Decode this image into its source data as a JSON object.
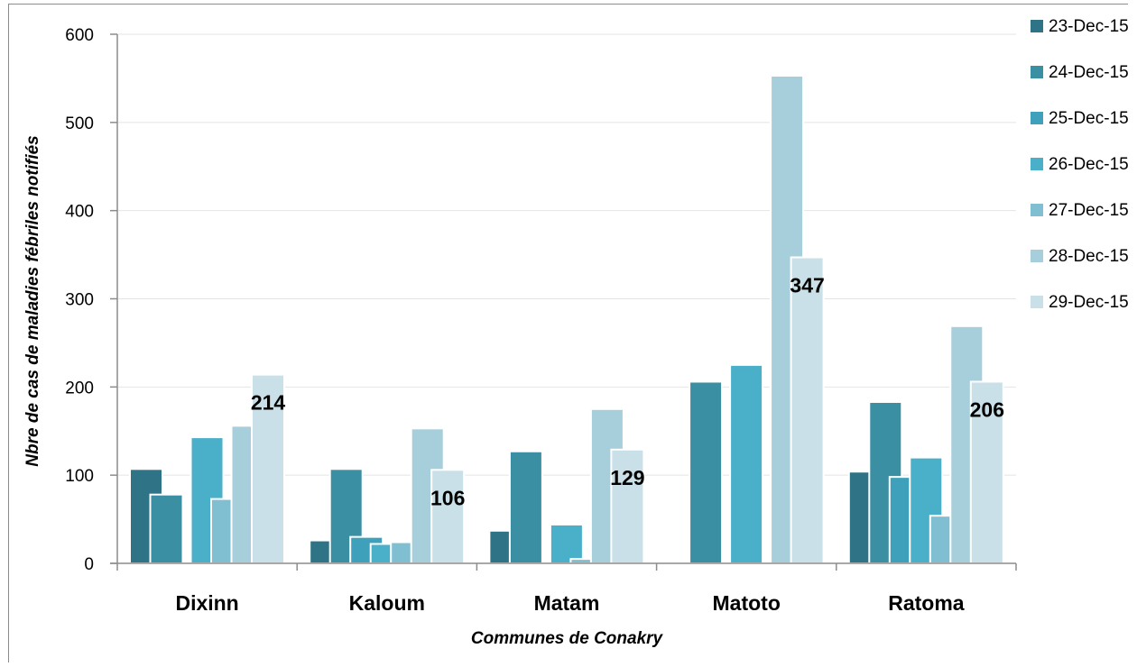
{
  "chart_data": {
    "type": "bar",
    "title": "",
    "xlabel": "Communes de Conakry",
    "ylabel": "Nbre de cas de maladies fébriles notifiés",
    "ylim": [
      0,
      600
    ],
    "yticks": [
      0,
      100,
      200,
      300,
      400,
      500,
      600
    ],
    "grid": true,
    "legend_position": "right",
    "categories": [
      "Dixinn",
      "Kaloum",
      "Matam",
      "Matoto",
      "Ratoma"
    ],
    "series": [
      {
        "name": "23-Dec-15",
        "color": "#2f7486",
        "values": [
          107,
          26,
          37,
          0,
          104
        ]
      },
      {
        "name": "24-Dec-15",
        "color": "#3a8fa3",
        "values": [
          78,
          107,
          127,
          206,
          183
        ]
      },
      {
        "name": "25-Dec-15",
        "color": "#3fa0bb",
        "values": [
          0,
          30,
          0,
          0,
          98
        ]
      },
      {
        "name": "26-Dec-15",
        "color": "#4aafc9",
        "values": [
          143,
          22,
          44,
          225,
          120
        ]
      },
      {
        "name": "27-Dec-15",
        "color": "#7fbfd1",
        "values": [
          73,
          24,
          5,
          0,
          54
        ]
      },
      {
        "name": "28-Dec-15",
        "color": "#a7cedb",
        "values": [
          156,
          153,
          175,
          553,
          269
        ]
      },
      {
        "name": "29-Dec-15",
        "color": "#c9e0e8",
        "values": [
          214,
          106,
          129,
          347,
          206
        ]
      }
    ],
    "data_labels": [
      {
        "category": "Dixinn",
        "series": "29-Dec-15",
        "text": "214"
      },
      {
        "category": "Kaloum",
        "series": "29-Dec-15",
        "text": "106"
      },
      {
        "category": "Matam",
        "series": "29-Dec-15",
        "text": "129"
      },
      {
        "category": "Matoto",
        "series": "29-Dec-15",
        "text": "347"
      },
      {
        "category": "Ratoma",
        "series": "29-Dec-15",
        "text": "206"
      }
    ]
  }
}
